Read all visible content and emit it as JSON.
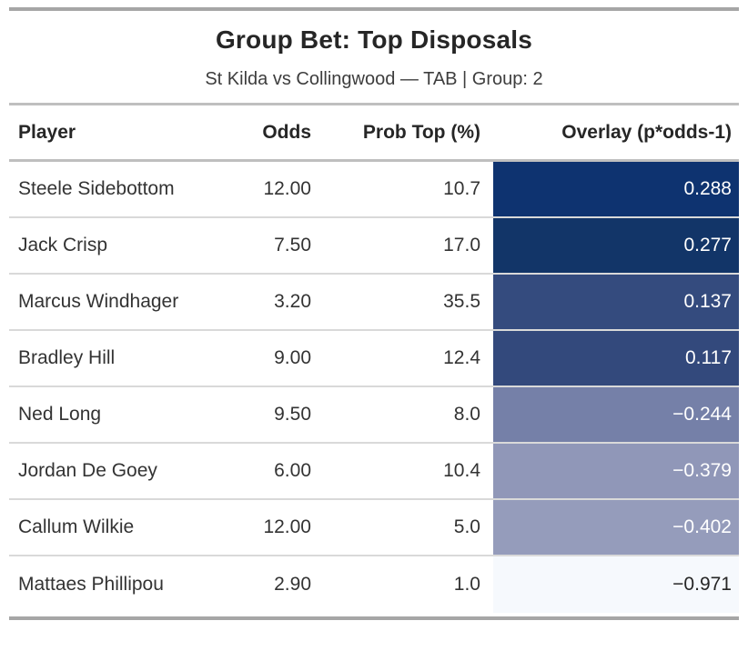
{
  "header": {
    "title": "Group Bet: Top Disposals",
    "subtitle": "St Kilda vs Collingwood — TAB | Group: 2"
  },
  "table": {
    "columns": {
      "player": "Player",
      "odds": "Odds",
      "prob": "Prob Top (%)",
      "overlay": "Overlay (p*odds-1)"
    },
    "rows": [
      {
        "player": "Steele Sidebottom",
        "odds": "12.00",
        "prob": "10.7",
        "overlay": "0.288",
        "overlay_bg": "#0e3370",
        "overlay_fg": "#ffffff"
      },
      {
        "player": "Jack Crisp",
        "odds": "7.50",
        "prob": "17.0",
        "overlay": "0.277",
        "overlay_bg": "#123568",
        "overlay_fg": "#ffffff"
      },
      {
        "player": "Marcus Windhager",
        "odds": "3.20",
        "prob": "35.5",
        "overlay": "0.137",
        "overlay_bg": "#344b7e",
        "overlay_fg": "#ffffff"
      },
      {
        "player": "Bradley Hill",
        "odds": "9.00",
        "prob": "12.4",
        "overlay": "0.117",
        "overlay_bg": "#33497c",
        "overlay_fg": "#ffffff"
      },
      {
        "player": "Ned Long",
        "odds": "9.50",
        "prob": "8.0",
        "overlay": "−0.244",
        "overlay_bg": "#7580a8",
        "overlay_fg": "#ffffff"
      },
      {
        "player": "Jordan De Goey",
        "odds": "6.00",
        "prob": "10.4",
        "overlay": "−0.379",
        "overlay_bg": "#9097b8",
        "overlay_fg": "#ffffff"
      },
      {
        "player": "Callum Wilkie",
        "odds": "12.00",
        "prob": "5.0",
        "overlay": "−0.402",
        "overlay_bg": "#959cbb",
        "overlay_fg": "#ffffff"
      },
      {
        "player": "Mattaes Phillipou",
        "odds": "2.90",
        "prob": "1.0",
        "overlay": "−0.971",
        "overlay_bg": "#f6f9fd",
        "overlay_fg": "#262626"
      }
    ]
  },
  "chart_data": {
    "type": "table",
    "title": "Group Bet: Top Disposals",
    "subtitle": "St Kilda vs Collingwood — TAB | Group: 2",
    "columns": [
      "Player",
      "Odds",
      "Prob Top (%)",
      "Overlay (p*odds-1)"
    ],
    "rows": [
      [
        "Steele Sidebottom",
        12.0,
        10.7,
        0.288
      ],
      [
        "Jack Crisp",
        7.5,
        17.0,
        0.277
      ],
      [
        "Marcus Windhager",
        3.2,
        35.5,
        0.137
      ],
      [
        "Bradley Hill",
        9.0,
        12.4,
        0.117
      ],
      [
        "Ned Long",
        9.5,
        8.0,
        -0.244
      ],
      [
        "Jordan De Goey",
        6.0,
        10.4,
        -0.379
      ],
      [
        "Callum Wilkie",
        12.0,
        5.0,
        -0.402
      ],
      [
        "Mattaes Phillipou",
        2.9,
        1.0,
        -0.971
      ]
    ],
    "notes": "Overlay column uses a dark-navy-to-light colormap keyed to overlay value"
  },
  "colors": {
    "rule_heavy": "#a6a6a6",
    "rule_mid": "#bfbfbf",
    "row_divider": "#d9d9d9",
    "overlay_scale_max": "#0e3370",
    "overlay_scale_min": "#f6f9fd"
  }
}
